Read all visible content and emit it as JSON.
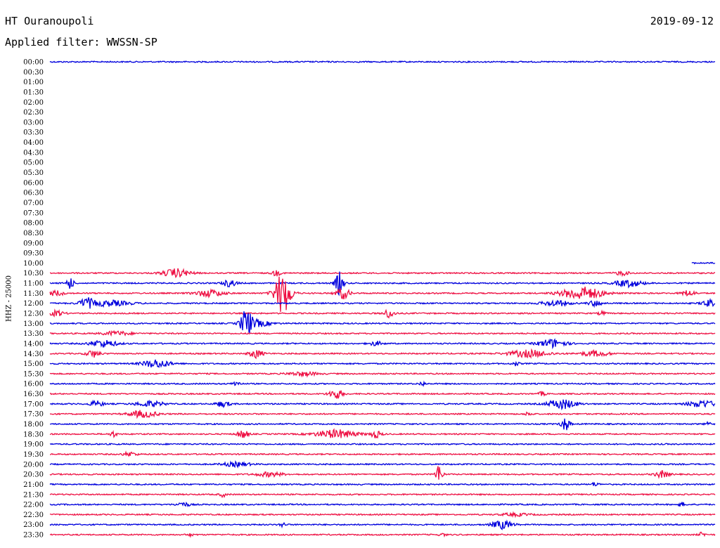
{
  "header": {
    "station": "HT Ouranoupoli",
    "date": "2019-09-12",
    "filter": "Applied filter: WWSSN-SP"
  },
  "channel_label": "HHZ - 25000",
  "colors": {
    "blue": "#0000dd",
    "red": "#ee1144"
  },
  "chart_data": {
    "type": "line",
    "title": "HT Ouranoupoli",
    "subtitle": "Applied filter: WWSSN-SP",
    "ylabel": "HHZ - 25000",
    "y_ticks": [
      "00:00",
      "00:30",
      "01:00",
      "01:30",
      "02:00",
      "02:30",
      "03:00",
      "03:30",
      "04:00",
      "04:30",
      "05:00",
      "05:30",
      "06:00",
      "06:30",
      "07:00",
      "07:30",
      "08:00",
      "08:30",
      "09:00",
      "09:30",
      "10:00",
      "10:30",
      "11:00",
      "11:30",
      "12:00",
      "12:30",
      "13:00",
      "13:30",
      "14:00",
      "14:30",
      "15:00",
      "15:30",
      "16:00",
      "16:30",
      "17:00",
      "17:30",
      "18:00",
      "18:30",
      "19:00",
      "19:30",
      "20:00",
      "20:30",
      "21:00",
      "21:30",
      "22:00",
      "22:30",
      "23:00",
      "23:30"
    ],
    "grid": false,
    "traces": [
      {
        "row": 0,
        "start": 0.0,
        "end": 1.0,
        "bursts": []
      },
      {
        "row": 20,
        "start": 0.965,
        "end": 1.0,
        "bursts": []
      },
      {
        "row": 21,
        "start": 0.0,
        "end": 1.0,
        "bursts": [
          [
            0.19,
            6,
            0.02
          ],
          [
            0.34,
            4,
            0.006
          ],
          [
            0.86,
            3,
            0.01
          ]
        ]
      },
      {
        "row": 22,
        "start": 0.0,
        "end": 1.0,
        "bursts": [
          [
            0.03,
            9,
            0.005
          ],
          [
            0.27,
            5,
            0.01
          ],
          [
            0.435,
            16,
            0.006
          ],
          [
            0.87,
            5,
            0.02
          ]
        ]
      },
      {
        "row": 23,
        "start": 0.0,
        "end": 1.0,
        "bursts": [
          [
            0.01,
            4,
            0.01
          ],
          [
            0.24,
            5,
            0.02
          ],
          [
            0.35,
            30,
            0.012
          ],
          [
            0.44,
            8,
            0.01
          ],
          [
            0.8,
            9,
            0.03
          ],
          [
            0.96,
            4,
            0.01
          ]
        ]
      },
      {
        "row": 24,
        "start": 0.0,
        "end": 1.0,
        "bursts": [
          [
            0.055,
            7,
            0.01
          ],
          [
            0.09,
            4,
            0.03
          ],
          [
            0.76,
            4,
            0.02
          ],
          [
            0.82,
            4,
            0.01
          ],
          [
            0.99,
            5,
            0.01
          ]
        ]
      },
      {
        "row": 25,
        "start": 0.0,
        "end": 1.0,
        "bursts": [
          [
            0.01,
            4,
            0.01
          ],
          [
            0.51,
            6,
            0.008
          ],
          [
            0.83,
            3,
            0.005
          ]
        ]
      },
      {
        "row": 26,
        "start": 0.0,
        "end": 1.0,
        "bursts": [
          [
            0.295,
            18,
            0.008
          ],
          [
            0.31,
            5,
            0.02
          ]
        ]
      },
      {
        "row": 27,
        "start": 0.0,
        "end": 1.0,
        "bursts": [
          [
            0.1,
            3,
            0.02
          ]
        ]
      },
      {
        "row": 28,
        "start": 0.0,
        "end": 1.0,
        "bursts": [
          [
            0.08,
            5,
            0.02
          ],
          [
            0.49,
            3,
            0.01
          ],
          [
            0.755,
            6,
            0.02
          ]
        ]
      },
      {
        "row": 29,
        "start": 0.0,
        "end": 1.0,
        "bursts": [
          [
            0.065,
            5,
            0.01
          ],
          [
            0.31,
            6,
            0.01
          ],
          [
            0.72,
            5,
            0.03
          ],
          [
            0.82,
            4,
            0.02
          ]
        ]
      },
      {
        "row": 30,
        "start": 0.0,
        "end": 1.0,
        "bursts": [
          [
            0.16,
            6,
            0.02
          ],
          [
            0.7,
            3,
            0.005
          ]
        ]
      },
      {
        "row": 31,
        "start": 0.0,
        "end": 1.0,
        "bursts": [
          [
            0.38,
            3,
            0.02
          ]
        ]
      },
      {
        "row": 32,
        "start": 0.0,
        "end": 1.0,
        "bursts": [
          [
            0.28,
            4,
            0.005
          ],
          [
            0.56,
            3,
            0.005
          ]
        ]
      },
      {
        "row": 33,
        "start": 0.0,
        "end": 1.0,
        "bursts": [
          [
            0.43,
            7,
            0.01
          ],
          [
            0.74,
            3,
            0.005
          ]
        ]
      },
      {
        "row": 34,
        "start": 0.0,
        "end": 1.0,
        "bursts": [
          [
            0.07,
            4,
            0.01
          ],
          [
            0.15,
            4,
            0.02
          ],
          [
            0.26,
            4,
            0.01
          ],
          [
            0.77,
            7,
            0.02
          ],
          [
            0.98,
            5,
            0.02
          ]
        ]
      },
      {
        "row": 35,
        "start": 0.0,
        "end": 1.0,
        "bursts": [
          [
            0.14,
            5,
            0.02
          ],
          [
            0.72,
            3,
            0.005
          ]
        ]
      },
      {
        "row": 36,
        "start": 0.0,
        "end": 1.0,
        "bursts": [
          [
            0.775,
            10,
            0.006
          ],
          [
            0.99,
            4,
            0.004
          ]
        ]
      },
      {
        "row": 37,
        "start": 0.0,
        "end": 1.0,
        "bursts": [
          [
            0.095,
            4,
            0.005
          ],
          [
            0.29,
            6,
            0.008
          ],
          [
            0.43,
            6,
            0.03
          ],
          [
            0.49,
            5,
            0.008
          ]
        ]
      },
      {
        "row": 38,
        "start": 0.0,
        "end": 1.0,
        "bursts": []
      },
      {
        "row": 39,
        "start": 0.0,
        "end": 1.0,
        "bursts": [
          [
            0.12,
            3,
            0.01
          ]
        ]
      },
      {
        "row": 40,
        "start": 0.0,
        "end": 1.0,
        "bursts": [
          [
            0.28,
            3,
            0.02
          ]
        ]
      },
      {
        "row": 41,
        "start": 0.0,
        "end": 1.0,
        "bursts": [
          [
            0.33,
            3,
            0.02
          ],
          [
            0.585,
            14,
            0.005
          ],
          [
            0.92,
            5,
            0.01
          ]
        ]
      },
      {
        "row": 42,
        "start": 0.0,
        "end": 1.0,
        "bursts": [
          [
            0.82,
            3,
            0.005
          ]
        ]
      },
      {
        "row": 43,
        "start": 0.0,
        "end": 1.0,
        "bursts": [
          [
            0.26,
            3,
            0.005
          ]
        ]
      },
      {
        "row": 44,
        "start": 0.0,
        "end": 1.0,
        "bursts": [
          [
            0.2,
            3,
            0.01
          ],
          [
            0.95,
            3,
            0.005
          ]
        ]
      },
      {
        "row": 45,
        "start": 0.0,
        "end": 1.0,
        "bursts": [
          [
            0.7,
            2,
            0.02
          ]
        ]
      },
      {
        "row": 46,
        "start": 0.0,
        "end": 1.0,
        "bursts": [
          [
            0.35,
            3,
            0.005
          ],
          [
            0.68,
            6,
            0.015
          ]
        ]
      },
      {
        "row": 47,
        "start": 0.0,
        "end": 1.0,
        "bursts": [
          [
            0.21,
            2,
            0.005
          ],
          [
            0.59,
            2,
            0.005
          ],
          [
            0.98,
            3,
            0.005
          ]
        ]
      }
    ]
  }
}
